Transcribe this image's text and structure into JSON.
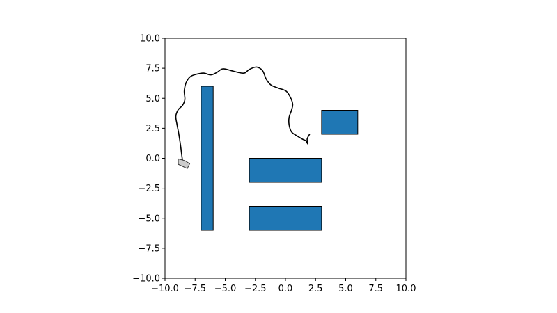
{
  "chart_data": {
    "type": "scatter",
    "title": "",
    "xlabel": "",
    "ylabel": "",
    "xlim": [
      -10,
      10
    ],
    "ylim": [
      -10,
      10
    ],
    "grid": false,
    "x_ticks": [
      -10,
      -7.5,
      -5,
      -2.5,
      0,
      2.5,
      5,
      7.5,
      10
    ],
    "y_ticks": [
      -10,
      -7.5,
      -5,
      -2.5,
      0,
      2.5,
      5,
      7.5,
      10
    ],
    "x_tick_labels": [
      "−10.0",
      "−7.5",
      "−5.0",
      "−2.5",
      "0.0",
      "2.5",
      "5.0",
      "7.5",
      "10.0"
    ],
    "y_tick_labels": [
      "−10.0",
      "−7.5",
      "−5.0",
      "−2.5",
      "0.0",
      "2.5",
      "5.0",
      "7.5",
      "10.0"
    ],
    "obstacles": [
      {
        "x": -7,
        "y": -6,
        "width": 1,
        "height": 12
      },
      {
        "x": -3,
        "y": -2,
        "width": 6,
        "height": 2
      },
      {
        "x": -3,
        "y": -6,
        "width": 6,
        "height": 2
      },
      {
        "x": 3,
        "y": 2,
        "width": 3,
        "height": 2
      }
    ],
    "obstacle_color": "#1f77b4",
    "path_color": "#000000",
    "path": [
      [
        2.0,
        2.0
      ],
      [
        1.8,
        1.6
      ],
      [
        1.85,
        1.2
      ],
      [
        1.7,
        1.45
      ],
      [
        1.4,
        1.6
      ],
      [
        0.9,
        1.9
      ],
      [
        0.5,
        2.2
      ],
      [
        0.3,
        2.8
      ],
      [
        0.3,
        3.4
      ],
      [
        0.5,
        4.0
      ],
      [
        0.6,
        4.5
      ],
      [
        0.4,
        5.1
      ],
      [
        0.05,
        5.6
      ],
      [
        -0.6,
        5.85
      ],
      [
        -1.2,
        6.1
      ],
      [
        -1.6,
        6.6
      ],
      [
        -1.9,
        7.3
      ],
      [
        -2.4,
        7.6
      ],
      [
        -3.0,
        7.4
      ],
      [
        -3.4,
        7.1
      ],
      [
        -3.9,
        7.15
      ],
      [
        -4.5,
        7.3
      ],
      [
        -5.2,
        7.45
      ],
      [
        -5.7,
        7.15
      ],
      [
        -6.2,
        6.95
      ],
      [
        -6.8,
        7.1
      ],
      [
        -7.4,
        7.0
      ],
      [
        -7.9,
        6.8
      ],
      [
        -8.25,
        6.3
      ],
      [
        -8.4,
        5.6
      ],
      [
        -8.35,
        4.9
      ],
      [
        -8.55,
        4.4
      ],
      [
        -8.9,
        4.05
      ],
      [
        -9.1,
        3.5
      ],
      [
        -9.0,
        2.8
      ],
      [
        -8.85,
        2.0
      ],
      [
        -8.7,
        1.0
      ],
      [
        -8.6,
        0.2
      ],
      [
        -8.5,
        -0.35
      ],
      [
        -8.25,
        -0.55
      ]
    ],
    "robot": {
      "polygon": [
        [
          -8.9,
          -0.05
        ],
        [
          -8.35,
          -0.2
        ],
        [
          -7.95,
          -0.45
        ],
        [
          -8.15,
          -0.85
        ],
        [
          -8.9,
          -0.5
        ]
      ],
      "fill": "#cccccc",
      "edge": "#333333"
    }
  }
}
